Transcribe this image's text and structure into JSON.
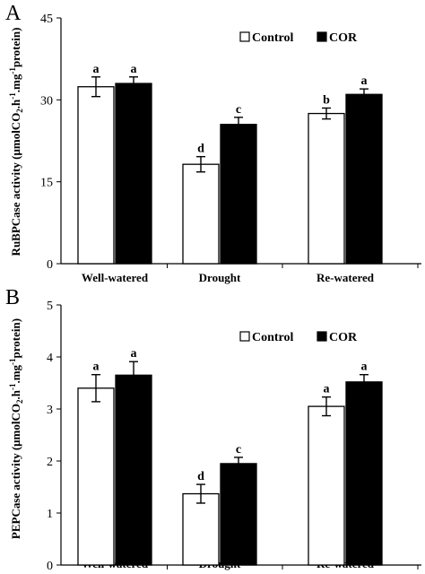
{
  "chart_data": [
    {
      "panel_label": "A",
      "type": "bar",
      "categories": [
        "Well-watered",
        "Drought",
        "Re-watered"
      ],
      "ylabel_parts": [
        "RuBPCase activity (μmolCO",
        "2",
        ".h",
        "-1",
        ".mg",
        "-1",
        "protein)"
      ],
      "ylim": [
        0,
        45
      ],
      "yticks": [
        0,
        15,
        30,
        45
      ],
      "legend_position": "top-right",
      "series": [
        {
          "name": "Control",
          "color": "#ffffff",
          "values": [
            32.4,
            18.2,
            27.5
          ],
          "errors": [
            1.8,
            1.4,
            1.0
          ],
          "letters": [
            "a",
            "d",
            "b"
          ]
        },
        {
          "name": "COR",
          "color": "#000000",
          "values": [
            33.0,
            25.5,
            31.0
          ],
          "errors": [
            1.2,
            1.3,
            1.0
          ],
          "letters": [
            "a",
            "c",
            "a"
          ]
        }
      ]
    },
    {
      "panel_label": "B",
      "type": "bar",
      "categories": [
        "Well-watered",
        "Drought",
        "Re-watered"
      ],
      "ylabel_parts": [
        "PEPCase activity (μmolCO",
        "2",
        ".h",
        "-1",
        ".mg",
        "-1",
        "protein)"
      ],
      "ylim": [
        0,
        5
      ],
      "yticks": [
        0,
        1,
        2,
        3,
        4,
        5
      ],
      "legend_position": "top-right",
      "series": [
        {
          "name": "Control",
          "color": "#ffffff",
          "values": [
            3.4,
            1.37,
            3.05
          ],
          "errors": [
            0.26,
            0.18,
            0.18
          ],
          "letters": [
            "a",
            "d",
            "a"
          ]
        },
        {
          "name": "COR",
          "color": "#000000",
          "values": [
            3.65,
            1.95,
            3.52
          ],
          "errors": [
            0.26,
            0.12,
            0.14
          ],
          "letters": [
            "a",
            "c",
            "a"
          ]
        }
      ]
    }
  ]
}
